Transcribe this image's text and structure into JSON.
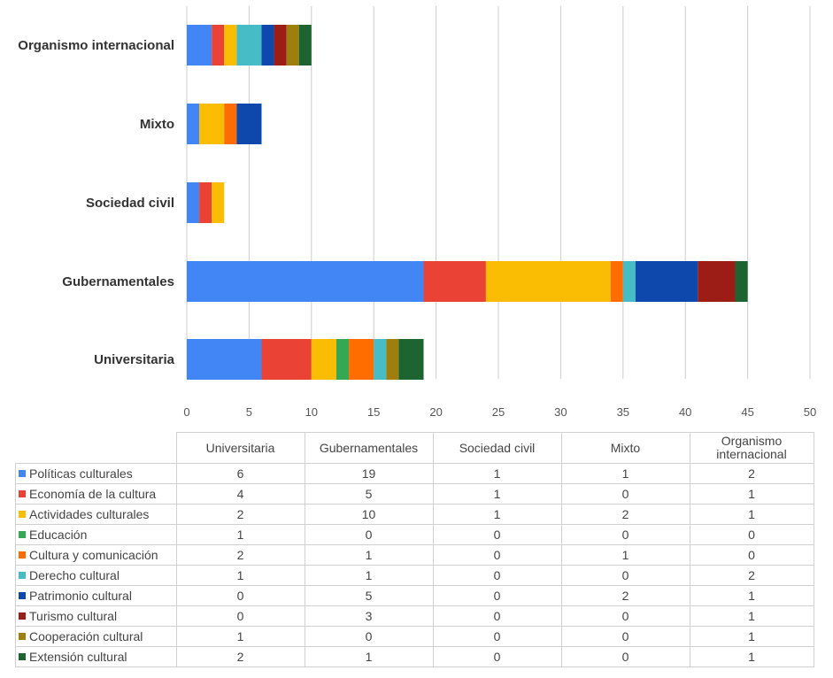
{
  "chart_data": {
    "type": "bar",
    "orientation": "horizontal",
    "stacked": true,
    "categories": [
      "Universitaria",
      "Gubernamentales",
      "Sociedad civil",
      "Mixto",
      "Organismo internacional"
    ],
    "table_headers": [
      "Universitaria",
      "Gubernamentales",
      "Sociedad civil",
      "Mixto",
      "Organismo internacional"
    ],
    "series": [
      {
        "name": "Políticas culturales",
        "color": "#4285f4",
        "values": [
          6,
          19,
          1,
          1,
          2
        ]
      },
      {
        "name": "Economía de la cultura",
        "color": "#ea4335",
        "values": [
          4,
          5,
          1,
          0,
          1
        ]
      },
      {
        "name": "Actividades culturales",
        "color": "#fbbc04",
        "values": [
          2,
          10,
          1,
          2,
          1
        ]
      },
      {
        "name": "Educación",
        "color": "#34a853",
        "values": [
          1,
          0,
          0,
          0,
          0
        ]
      },
      {
        "name": "Cultura y comunicación",
        "color": "#ff6d01",
        "values": [
          2,
          1,
          0,
          1,
          0
        ]
      },
      {
        "name": "Derecho cultural",
        "color": "#46bdc6",
        "values": [
          1,
          1,
          0,
          0,
          2
        ]
      },
      {
        "name": "Patrimonio cultural",
        "color": "#0f48ad",
        "values": [
          0,
          5,
          0,
          2,
          1
        ]
      },
      {
        "name": "Turismo cultural",
        "color": "#9c1c16",
        "values": [
          0,
          3,
          0,
          0,
          1
        ]
      },
      {
        "name": "Cooperación cultural",
        "color": "#9e7e0c",
        "values": [
          1,
          0,
          0,
          0,
          1
        ]
      },
      {
        "name": "Extensión cultural",
        "color": "#1e6431",
        "values": [
          2,
          1,
          0,
          0,
          1
        ]
      }
    ],
    "xticks": [
      "0",
      "5",
      "10",
      "15",
      "20",
      "25",
      "30",
      "35",
      "40",
      "45",
      "50"
    ],
    "xlim": [
      0,
      50
    ],
    "grid": true,
    "legend": "table-below"
  }
}
